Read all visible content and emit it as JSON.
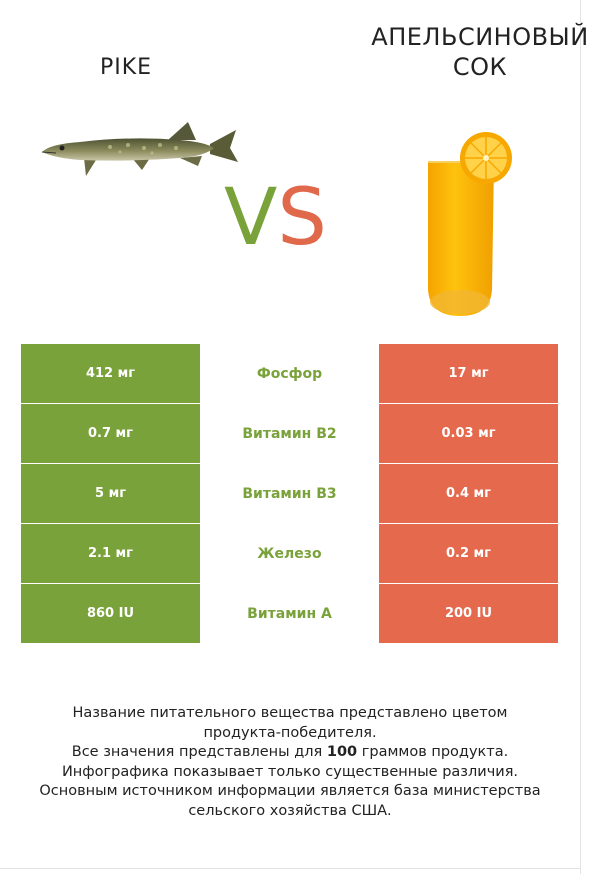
{
  "left_product": {
    "name": "PIKE"
  },
  "right_product": {
    "name_line1": "АПЕЛЬСИНОВЫЙ",
    "name_line2": "СОК"
  },
  "vs": {
    "v": "V",
    "s": "S"
  },
  "colors": {
    "winner_left": "#7aa23a",
    "winner_right": "#e5694c"
  },
  "rows": [
    {
      "left": "412 мг",
      "nutrient": "Фосфор",
      "right": "17 мг"
    },
    {
      "left": "0.7 мг",
      "nutrient": "Витамин B2",
      "right": "0.03 мг"
    },
    {
      "left": "5 мг",
      "nutrient": "Витамин B3",
      "right": "0.4 мг"
    },
    {
      "left": "2.1 мг",
      "nutrient": "Железо",
      "right": "0.2 мг"
    },
    {
      "left": "860 IU",
      "nutrient": "Витамин A",
      "right": "200 IU"
    }
  ],
  "footer": {
    "line1": "Название питательного вещества представлено цветом",
    "line2": "продукта-победителя.",
    "line3_pre": "Все значения представлены для ",
    "line3_bold": "100",
    "line3_post": " граммов продукта.",
    "line4": "Инфографика показывает только существенные различия.",
    "line5": "Основным источником информации является база министерства",
    "line6": "сельского хозяйства США."
  }
}
